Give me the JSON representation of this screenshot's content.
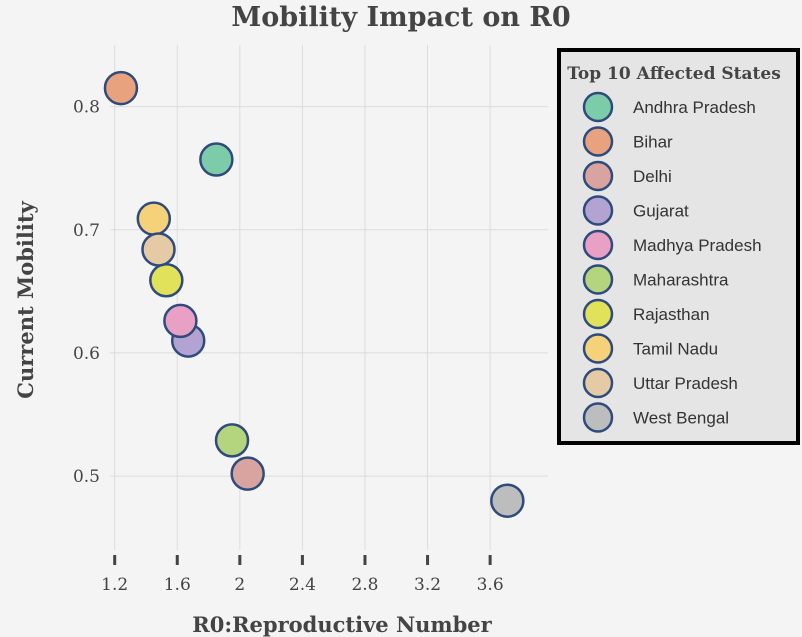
{
  "chart_data": {
    "type": "scatter",
    "title": "Mobility Impact on R0",
    "xlabel": "R0:Reproductive Number",
    "ylabel": "Current Mobility",
    "xlim": [
      1.17,
      3.97
    ],
    "ylim": [
      0.44,
      0.85
    ],
    "x_ticks": [
      1.2,
      1.6,
      2,
      2.4,
      2.8,
      3.2,
      3.6
    ],
    "x_tick_labels": [
      "1.2",
      "1.6",
      "2",
      "2.4",
      "2.8",
      "3.2",
      "3.6"
    ],
    "y_ticks": [
      0.5,
      0.6,
      0.7,
      0.8
    ],
    "y_tick_labels": [
      "0.5",
      "0.6",
      "0.7",
      "0.8"
    ],
    "grid": true,
    "legend": {
      "title": "Top 10 Affected States",
      "position": "right"
    },
    "series": [
      {
        "name": "Andhra Pradesh",
        "color": "#7ccba9",
        "x": 1.85,
        "y": 0.757
      },
      {
        "name": "Bihar",
        "color": "#e8a37e",
        "x": 1.24,
        "y": 0.815
      },
      {
        "name": "Delhi",
        "color": "#d9a4a0",
        "x": 2.05,
        "y": 0.502
      },
      {
        "name": "Gujarat",
        "color": "#b3a3d3",
        "x": 1.67,
        "y": 0.61
      },
      {
        "name": "Madhya Pradesh",
        "color": "#e9a0c5",
        "x": 1.62,
        "y": 0.626
      },
      {
        "name": "Maharashtra",
        "color": "#b5d47e",
        "x": 1.95,
        "y": 0.529
      },
      {
        "name": "Rajasthan",
        "color": "#e2e15a",
        "x": 1.53,
        "y": 0.659
      },
      {
        "name": "Tamil Nadu",
        "color": "#f5d27a",
        "x": 1.45,
        "y": 0.709
      },
      {
        "name": "Uttar Pradesh",
        "color": "#e4cba6",
        "x": 1.48,
        "y": 0.684
      },
      {
        "name": "West Bengal",
        "color": "#bdbdbd",
        "x": 3.71,
        "y": 0.48
      }
    ]
  }
}
